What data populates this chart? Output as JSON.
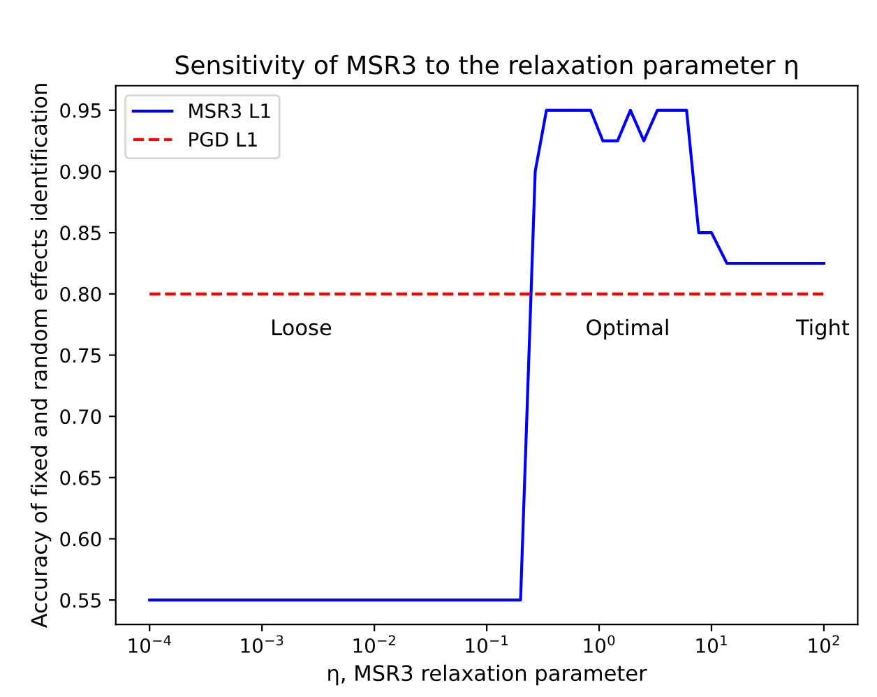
{
  "chart_data": {
    "type": "line",
    "title": "Sensitivity of MSR3 to the relaxation parameter η",
    "xlabel": "η, MSR3 relaxation parameter",
    "ylabel": "Accuracy of fixed and random effects identification",
    "log": "x",
    "xlim": [
      5e-05,
      200
    ],
    "ylim": [
      0.53,
      0.97
    ],
    "xticks": [
      {
        "value": 0.0001,
        "label": "10$^{−4}$"
      },
      {
        "value": 0.001,
        "label": "10$^{−3}$"
      },
      {
        "value": 0.01,
        "label": "10$^{−2}$"
      },
      {
        "value": 0.1,
        "label": "10$^{−1}$"
      },
      {
        "value": 1,
        "label": "10$^{0}$"
      },
      {
        "value": 10,
        "label": "10$^{1}$"
      },
      {
        "value": 100,
        "label": "10$^{2}$"
      }
    ],
    "yticks": [
      0.55,
      {
        "value": 0.6,
        "label": "0.60"
      },
      0.65,
      {
        "value": 0.7,
        "label": "0.70"
      },
      0.75,
      {
        "value": 0.8,
        "label": "0.80"
      },
      0.85,
      {
        "value": 0.9,
        "label": "0.90"
      },
      0.95
    ],
    "legend": "top left",
    "grid": false,
    "marker": "none",
    "series": [
      {
        "name": "MSR3 L1",
        "color": "#0000ff",
        "line_style": "solid",
        "x": [
          0.0001,
          0.2,
          0.27,
          0.34,
          0.84,
          1.08,
          1.46,
          1.9,
          2.5,
          3.3,
          6.0,
          7.7,
          10,
          13.7,
          100
        ],
        "values": [
          0.55,
          0.55,
          0.9,
          0.95,
          0.95,
          0.925,
          0.925,
          0.95,
          0.925,
          0.95,
          0.95,
          0.85,
          0.85,
          0.825,
          0.825
        ]
      },
      {
        "name": "PGD L1",
        "color": "#ff0000",
        "line_style": "dashed",
        "x": [
          0.0001,
          100
        ],
        "values": [
          0.8,
          0.8
        ]
      }
    ],
    "annotations": [
      "Loose",
      "Optimal",
      "Tight"
    ]
  }
}
